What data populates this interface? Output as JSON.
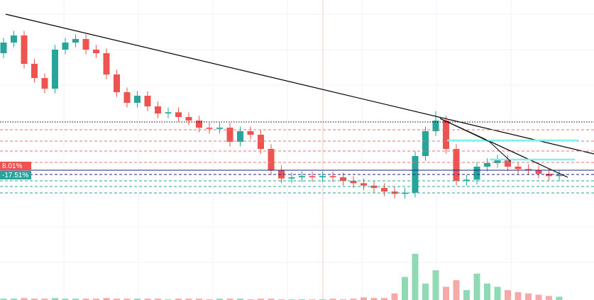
{
  "chart_data": {
    "type": "candlestick",
    "up_color": "#26a69a",
    "down_color": "#ef5350",
    "volume_up_color": "#8fd9b4",
    "volume_down_color": "#f7a9a7",
    "ylim": [
      0.6,
      2.4
    ],
    "volume_lim": [
      0,
      100
    ],
    "open": [
      1.95,
      2.04,
      2.1,
      1.86,
      1.74,
      1.65,
      1.98,
      2.04,
      2.07,
      1.98,
      1.95,
      1.77,
      1.62,
      1.53,
      1.59,
      1.5,
      1.44,
      1.45,
      1.41,
      1.38,
      1.32,
      1.31,
      1.32,
      1.2,
      1.29,
      1.26,
      1.14,
      0.96,
      0.89,
      0.9,
      0.91,
      0.9,
      0.91,
      0.9,
      0.87,
      0.85,
      0.83,
      0.81,
      0.78,
      0.76,
      0.77,
      1.08,
      1.29,
      1.38,
      1.14,
      0.87,
      0.88,
      0.99,
      1.02,
      1.05,
      0.99,
      0.97,
      0.96,
      0.93,
      0.91
    ],
    "high": [
      2.08,
      2.14,
      2.14,
      1.9,
      1.78,
      2.02,
      2.08,
      2.11,
      2.11,
      2.02,
      1.99,
      1.81,
      1.66,
      1.63,
      1.63,
      1.54,
      1.49,
      1.49,
      1.45,
      1.42,
      1.36,
      1.36,
      1.36,
      1.33,
      1.33,
      1.3,
      1.18,
      1.0,
      0.94,
      0.95,
      0.95,
      0.95,
      0.95,
      0.94,
      0.91,
      0.89,
      0.87,
      0.85,
      0.82,
      0.81,
      1.12,
      1.33,
      1.46,
      1.42,
      1.18,
      0.92,
      1.03,
      1.06,
      1.09,
      1.09,
      1.03,
      1.01,
      1.0,
      0.97,
      0.96
    ],
    "low": [
      1.91,
      2.0,
      1.82,
      1.7,
      1.61,
      1.61,
      1.94,
      2.0,
      1.94,
      1.91,
      1.73,
      1.58,
      1.49,
      1.49,
      1.46,
      1.4,
      1.4,
      1.37,
      1.34,
      1.28,
      1.27,
      1.27,
      1.16,
      1.16,
      1.22,
      1.1,
      0.92,
      0.85,
      0.85,
      0.86,
      0.86,
      0.86,
      0.86,
      0.83,
      0.81,
      0.79,
      0.77,
      0.74,
      0.72,
      0.72,
      0.73,
      1.04,
      1.25,
      1.1,
      0.83,
      0.83,
      0.84,
      0.95,
      0.98,
      0.95,
      0.93,
      0.92,
      0.89,
      0.87,
      0.87
    ],
    "close": [
      2.04,
      2.1,
      1.86,
      1.74,
      1.65,
      1.98,
      2.04,
      2.07,
      1.98,
      1.95,
      1.77,
      1.62,
      1.53,
      1.59,
      1.5,
      1.44,
      1.45,
      1.41,
      1.38,
      1.32,
      1.31,
      1.32,
      1.2,
      1.29,
      1.26,
      1.14,
      0.96,
      0.89,
      0.9,
      0.91,
      0.9,
      0.91,
      0.9,
      0.87,
      0.85,
      0.83,
      0.81,
      0.78,
      0.76,
      0.77,
      1.08,
      1.29,
      1.38,
      1.14,
      0.87,
      0.88,
      0.99,
      1.02,
      1.05,
      0.99,
      0.97,
      0.96,
      0.93,
      0.91,
      0.92
    ],
    "volume": [
      2,
      2,
      3,
      2,
      2,
      3,
      2,
      2,
      2,
      2,
      3,
      2,
      2,
      2,
      2,
      2,
      1,
      2,
      2,
      2,
      1,
      2,
      2,
      2,
      1,
      2,
      2,
      1,
      1,
      1,
      1,
      1,
      2,
      1,
      2,
      4,
      3,
      3,
      10,
      35,
      70,
      25,
      45,
      20,
      30,
      15,
      40,
      25,
      20,
      15,
      12,
      10,
      8,
      6,
      5
    ],
    "annotations": [
      "8.01%",
      "-17.51%"
    ]
  }
}
